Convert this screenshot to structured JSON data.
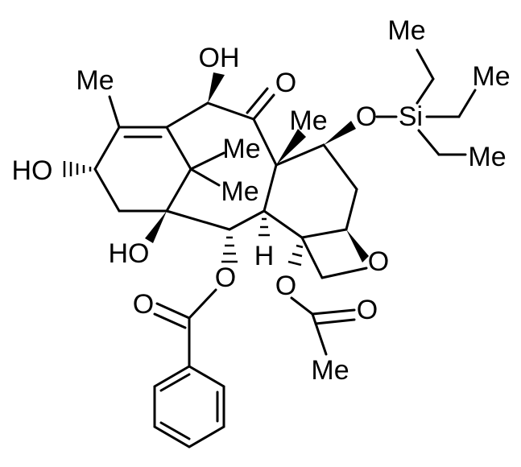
{
  "atoms": [
    "Me",
    "Me",
    "Me",
    "Si",
    "O",
    "OH",
    "O",
    "Me",
    "Me",
    "Me",
    "Me",
    "HO",
    "HO",
    "O",
    "H",
    "O",
    "O",
    "O",
    "O",
    "Me"
  ]
}
